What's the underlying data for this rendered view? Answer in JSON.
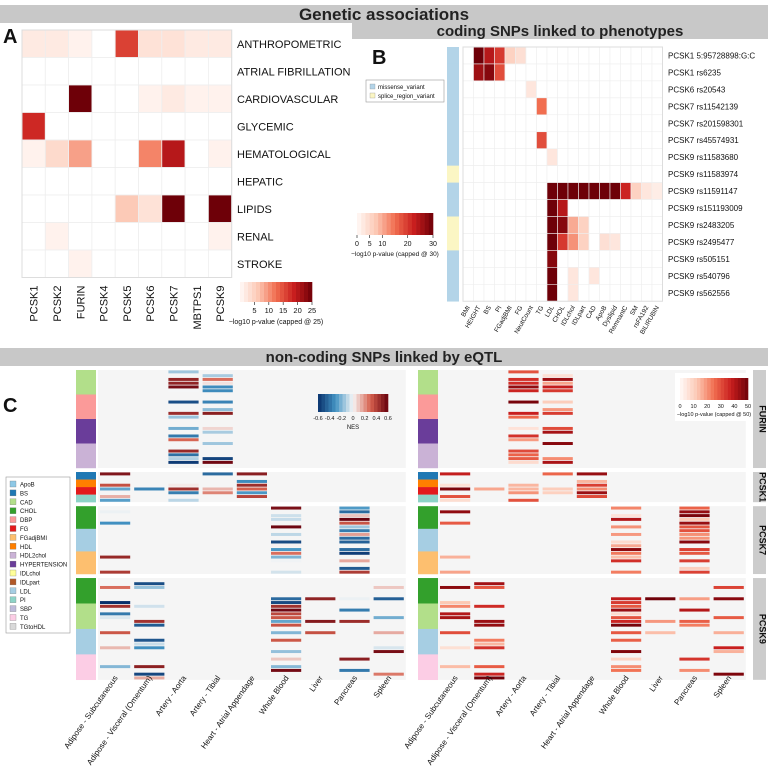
{
  "main_title": "Genetic associations",
  "panel_labels": {
    "a": "A",
    "b": "B",
    "c": "C"
  },
  "colors": {
    "banner": "#c8c8c8",
    "grid": "#eeeeee",
    "cell_blank": "#ffffff"
  },
  "chart_data": [
    {
      "type": "heatmap",
      "id": "A",
      "columns": [
        "PCSK1",
        "PCSK2",
        "FURIN",
        "PCSK4",
        "PCSK5",
        "PCSK6",
        "PCSK7",
        "MBTPS1",
        "PCSK9"
      ],
      "rows": [
        "ANTHROPOMETRIC",
        "ATRIAL FIBRILLATION",
        "CARDIOVASCULAR",
        "GLYCEMIC",
        "HEMATOLOGICAL",
        "HEPATIC",
        "LIPIDS",
        "RENAL",
        "STROKE"
      ],
      "values": [
        [
          2,
          2,
          1,
          0,
          16,
          3,
          3,
          2,
          2
        ],
        [
          0,
          0,
          0,
          0,
          0,
          0,
          0,
          0,
          0
        ],
        [
          0,
          0,
          25,
          0,
          0,
          1,
          2,
          1,
          1
        ],
        [
          18,
          0,
          0,
          0,
          0,
          0,
          0,
          0,
          0
        ],
        [
          1,
          4,
          9,
          0,
          0,
          11,
          20,
          0,
          1
        ],
        [
          0,
          0,
          0,
          0,
          0,
          0,
          0,
          0,
          0
        ],
        [
          0,
          0,
          0,
          0,
          6,
          3,
          25,
          0,
          25
        ],
        [
          0,
          1,
          0,
          0,
          0,
          0,
          0,
          0,
          1
        ],
        [
          0,
          0,
          1,
          0,
          0,
          0,
          0,
          0,
          0
        ]
      ],
      "legend": {
        "ticks": [
          5,
          10,
          15,
          20,
          25
        ],
        "min": 0,
        "max": 25,
        "label": "−log10 p-value (capped @ 25)"
      }
    },
    {
      "type": "heatmap",
      "id": "B",
      "title": "coding SNPs linked to phenotypes",
      "rows": [
        "PCSK1 5:95728898:G:C",
        "PCSK1 rs6235",
        "PCSK6 rs20543",
        "PCSK7 rs11542139",
        "PCSK7 rs201598301",
        "PCSK7 rs45574931",
        "PCSK9 rs11583680",
        "PCSK9 rs11583974",
        "PCSK9 rs11591147",
        "PCSK9 rs151193009",
        "PCSK9 rs2483205",
        "PCSK9 rs2495477",
        "PCSK9 rs505151",
        "PCSK9 rs540796",
        "PCSK9 rs562556"
      ],
      "columns": [
        "BMI",
        "HEIGHT",
        "BS",
        "PI",
        "FGadjBMI",
        "FG",
        "NeutCount",
        "TG",
        "LDL",
        "CHOL",
        "IDLchol",
        "IDLpart",
        "CAD",
        "ApoB",
        "Dyslipid",
        "RemnantC",
        "SM",
        "rsFA192",
        "BILIRUBIN"
      ],
      "variant_class": [
        "missense",
        "missense",
        "missense",
        "missense",
        "missense",
        "missense",
        "missense",
        "splice",
        "missense",
        "missense",
        "splice",
        "splice",
        "missense",
        "missense",
        "missense"
      ],
      "variant_legend": [
        {
          "label": "missense_variant",
          "color": "#b3d4e8"
        },
        {
          "label": "splice_region_variant",
          "color": "#fbf6c4"
        }
      ],
      "values": [
        [
          0,
          30,
          24,
          20,
          6,
          4,
          0,
          0,
          0,
          0,
          0,
          0,
          0,
          0,
          0,
          0,
          0,
          0,
          0
        ],
        [
          0,
          26,
          28,
          18,
          0,
          0,
          0,
          0,
          0,
          0,
          0,
          0,
          0,
          0,
          0,
          0,
          0,
          0,
          0
        ],
        [
          0,
          0,
          0,
          0,
          0,
          0,
          3,
          0,
          0,
          0,
          0,
          0,
          0,
          0,
          0,
          0,
          0,
          0,
          0
        ],
        [
          0,
          0,
          0,
          0,
          0,
          0,
          0,
          15,
          0,
          0,
          0,
          0,
          0,
          0,
          0,
          0,
          0,
          0,
          0
        ],
        [
          0,
          0,
          0,
          0,
          0,
          0,
          0,
          0,
          0,
          0,
          0,
          0,
          0,
          0,
          0,
          0,
          0,
          0,
          0
        ],
        [
          0,
          0,
          0,
          0,
          0,
          0,
          0,
          18,
          0,
          0,
          0,
          0,
          0,
          0,
          0,
          0,
          0,
          0,
          0
        ],
        [
          0,
          0,
          0,
          0,
          0,
          0,
          0,
          0,
          3,
          0,
          0,
          0,
          0,
          0,
          0,
          0,
          0,
          0,
          0
        ],
        [
          0,
          0,
          0,
          0,
          0,
          0,
          0,
          0,
          0,
          0,
          0,
          0,
          0,
          0,
          0,
          0,
          0,
          0,
          0
        ],
        [
          0,
          0,
          0,
          0,
          0,
          0,
          0,
          0,
          30,
          30,
          30,
          30,
          30,
          30,
          30,
          22,
          6,
          3,
          2
        ],
        [
          0,
          0,
          0,
          0,
          0,
          0,
          0,
          0,
          30,
          24,
          0,
          0,
          0,
          0,
          0,
          0,
          0,
          0,
          0
        ],
        [
          0,
          0,
          0,
          0,
          0,
          0,
          0,
          0,
          30,
          28,
          10,
          6,
          0,
          0,
          0,
          0,
          0,
          0,
          0
        ],
        [
          0,
          0,
          0,
          0,
          0,
          0,
          0,
          0,
          30,
          20,
          12,
          6,
          0,
          4,
          3,
          0,
          0,
          0,
          0
        ],
        [
          0,
          0,
          0,
          0,
          0,
          0,
          0,
          0,
          28,
          0,
          0,
          0,
          0,
          0,
          0,
          0,
          0,
          0,
          0
        ],
        [
          0,
          0,
          0,
          0,
          0,
          0,
          0,
          0,
          30,
          0,
          3,
          0,
          3,
          0,
          0,
          0,
          0,
          0,
          0
        ],
        [
          0,
          0,
          0,
          0,
          0,
          0,
          0,
          0,
          30,
          0,
          3,
          0,
          0,
          0,
          0,
          0,
          0,
          0,
          0
        ]
      ],
      "legend": {
        "ticks": [
          0,
          5,
          10,
          20,
          30
        ],
        "min": 0,
        "max": 30,
        "label": "−log10 p-value (capped @ 30)"
      }
    },
    {
      "type": "heatmap",
      "id": "C",
      "title": "non-coding SNPs linked by eQTL",
      "genes": [
        "FURIN",
        "PCSK1",
        "PCSK7",
        "PCSK9"
      ],
      "tissues": [
        "Adipose - Subcutaneous",
        "Adipose - Visceral (Omentum)",
        "Artery - Aorta",
        "Artery - Tibial",
        "Heart - Atrial Appendage",
        "Whole Blood",
        "Liver",
        "Pancreas",
        "Spleen"
      ],
      "trait_legend": [
        {
          "label": "ApoB",
          "color": "#8ec8e6"
        },
        {
          "label": "BS",
          "color": "#1f78b4"
        },
        {
          "label": "CAD",
          "color": "#b2df8a"
        },
        {
          "label": "CHOL",
          "color": "#33a02c"
        },
        {
          "label": "DBP",
          "color": "#fb9a99"
        },
        {
          "label": "FG",
          "color": "#e31a1c"
        },
        {
          "label": "FGadjBMI",
          "color": "#fdbf6f"
        },
        {
          "label": "HDL",
          "color": "#ff7f00"
        },
        {
          "label": "HDL2chol",
          "color": "#cab2d6"
        },
        {
          "label": "HYPERTENSION",
          "color": "#6a3d9a"
        },
        {
          "label": "IDLchol",
          "color": "#ffff99"
        },
        {
          "label": "IDLpart",
          "color": "#b15928"
        },
        {
          "label": "LDL",
          "color": "#a6cee3"
        },
        {
          "label": "PI",
          "color": "#8dd3c7"
        },
        {
          "label": "SBP",
          "color": "#bebada"
        },
        {
          "label": "TG",
          "color": "#fccde5"
        },
        {
          "label": "TGtoHDL",
          "color": "#d9d9d9"
        }
      ],
      "nes_legend": {
        "ticks": [
          -0.6,
          -0.4,
          -0.2,
          0,
          0.2,
          0.4,
          0.6
        ],
        "min": -0.6,
        "max": 0.6,
        "label": "NES"
      },
      "p_legend": {
        "ticks": [
          0,
          10,
          20,
          30,
          40,
          50
        ],
        "min": 0,
        "max": 50,
        "label": "−log10 p-value (capped @ 50)"
      }
    }
  ]
}
